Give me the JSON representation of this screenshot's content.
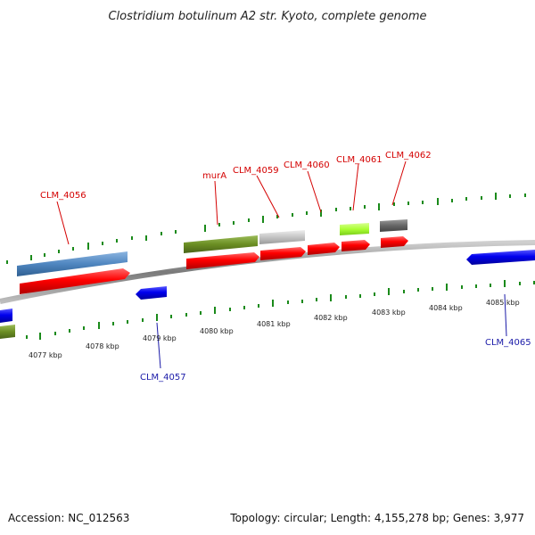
{
  "title": "Clostridium botulinum A2 str. Kyoto, complete genome",
  "footer": {
    "accession": "Accession: NC_012563",
    "summary": "Topology: circular; Length: 4,155,278 bp; Genes: 3,977"
  },
  "colors": {
    "forward_cds": "#ff0000",
    "reverse_gene": "#0000ee",
    "label_forward": "#d40000",
    "label_reverse": "#1a1aa8",
    "tick": "#1a8a1a",
    "backbone": "#888888",
    "steelblue": "#4f86c0",
    "olive": "#6b8e23",
    "silver": "#bdbdbd",
    "lime": "#aaff33",
    "darkgray": "#666666"
  },
  "scale_labels": [
    "4077 kbp",
    "4078 kbp",
    "4079 kbp",
    "4080 kbp",
    "4081 kbp",
    "4082 kbp",
    "4083 kbp",
    "4084 kbp",
    "4085 kbp"
  ],
  "gene_labels": {
    "top": [
      "CLM_4056",
      "murA",
      "CLM_4059",
      "CLM_4060",
      "CLM_4061",
      "CLM_4062"
    ],
    "bottom": [
      "CLM_4057",
      "CLM_4065"
    ]
  }
}
